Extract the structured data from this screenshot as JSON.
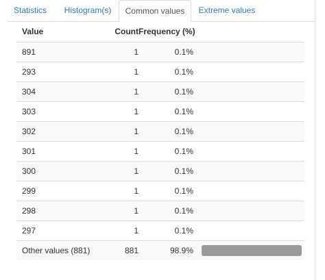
{
  "tabs": [
    {
      "label": "Statistics",
      "active": false
    },
    {
      "label": "Histogram(s)",
      "active": false
    },
    {
      "label": "Common values",
      "active": true
    },
    {
      "label": "Extreme values",
      "active": false
    }
  ],
  "table": {
    "headers": {
      "value": "Value",
      "count": "Count",
      "frequency": "Frequency (%)"
    },
    "rows": [
      {
        "value": "891",
        "count": "1",
        "frequency": "0.1%"
      },
      {
        "value": "293",
        "count": "1",
        "frequency": "0.1%"
      },
      {
        "value": "304",
        "count": "1",
        "frequency": "0.1%"
      },
      {
        "value": "303",
        "count": "1",
        "frequency": "0.1%"
      },
      {
        "value": "302",
        "count": "1",
        "frequency": "0.1%"
      },
      {
        "value": "301",
        "count": "1",
        "frequency": "0.1%"
      },
      {
        "value": "300",
        "count": "1",
        "frequency": "0.1%"
      },
      {
        "value": "299",
        "count": "1",
        "frequency": "0.1%"
      },
      {
        "value": "298",
        "count": "1",
        "frequency": "0.1%"
      },
      {
        "value": "297",
        "count": "1",
        "frequency": "0.1%"
      }
    ],
    "other": {
      "value": "Other values (881)",
      "count": "881",
      "frequency": "98.9%",
      "bar_fraction": 1.0
    }
  },
  "colors": {
    "link": "#337ab7",
    "bar": "#999999",
    "stripe": "#f9f9f9",
    "border": "#dddddd"
  }
}
